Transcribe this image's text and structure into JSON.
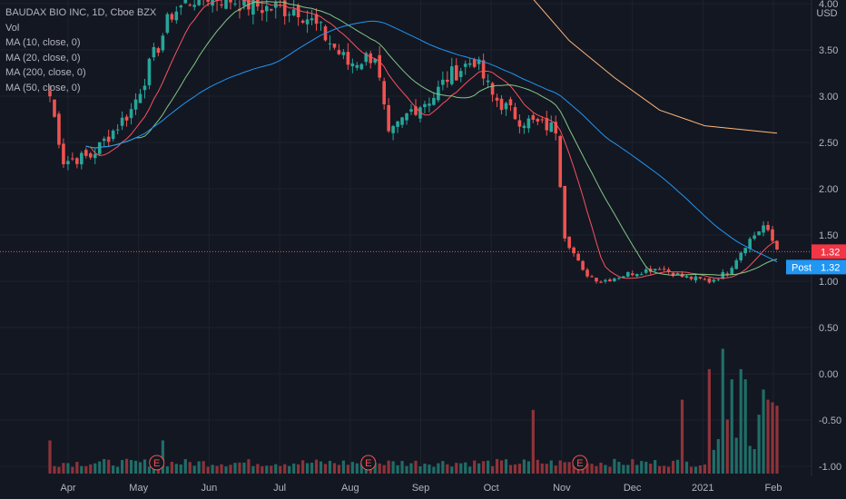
{
  "header": {
    "symbol_line": "BAUDAX BIO INC, 1D, Cboe BZX",
    "indicators": [
      "Vol",
      "MA (10, close, 0)",
      "MA (20, close, 0)",
      "MA (200, close, 0)",
      "MA (50, close, 0)"
    ]
  },
  "price_badges": {
    "last": "1.32",
    "post_label": "Post",
    "post": "1.32",
    "last_color": "#f23645",
    "post_color": "#2196f3"
  },
  "earnings_marker": "E",
  "currency": "USD",
  "chart_data": {
    "type": "candlestick",
    "yticks": [
      "4.00",
      "3.50",
      "3.00",
      "2.50",
      "2.00",
      "1.50",
      "1.00",
      "0.50",
      "0.00",
      "-0.50",
      "-1.00"
    ],
    "ytick_values": [
      4.0,
      3.5,
      3.0,
      2.5,
      2.0,
      1.5,
      1.0,
      0.5,
      0.0,
      -0.5,
      -1.0
    ],
    "xticks": [
      "Apr",
      "May",
      "Jun",
      "Jul",
      "Aug",
      "Sep",
      "Oct",
      "Nov",
      "Dec",
      "2021",
      "Feb"
    ],
    "earnings_months": [
      "May",
      "Aug",
      "Nov"
    ],
    "colors": {
      "up": "#26a69a",
      "down": "#ef5350",
      "up_vol": "#1f6e68",
      "down_vol": "#8f3339",
      "ma10": "#f7525f",
      "ma20": "#81c784",
      "ma50": "#2196f3",
      "ma200": "#ffb877"
    },
    "key_closes": [
      [
        0,
        3.0
      ],
      [
        3,
        2.3
      ],
      [
        9,
        2.35
      ],
      [
        18,
        2.85
      ],
      [
        27,
        3.9
      ],
      [
        33,
        4.1
      ],
      [
        40,
        4.05
      ],
      [
        48,
        3.95
      ],
      [
        55,
        3.95
      ],
      [
        60,
        3.7
      ],
      [
        66,
        3.35
      ],
      [
        72,
        3.45
      ],
      [
        75,
        2.55
      ],
      [
        80,
        2.85
      ],
      [
        85,
        3.0
      ],
      [
        88,
        3.2
      ],
      [
        94,
        3.4
      ],
      [
        98,
        3.0
      ],
      [
        104,
        2.75
      ],
      [
        108,
        2.7
      ],
      [
        112,
        2.65
      ],
      [
        114,
        1.5
      ],
      [
        118,
        1.1
      ],
      [
        122,
        1.0
      ],
      [
        128,
        1.08
      ],
      [
        135,
        1.15
      ],
      [
        140,
        1.05
      ],
      [
        146,
        1.0
      ],
      [
        150,
        1.1
      ],
      [
        154,
        1.4
      ],
      [
        157,
        1.55
      ],
      [
        158,
        1.6
      ],
      [
        161,
        1.35
      ]
    ],
    "ma200_points": [
      [
        107,
        4.05
      ],
      [
        115,
        3.6
      ],
      [
        125,
        3.2
      ],
      [
        135,
        2.85
      ],
      [
        145,
        2.68
      ],
      [
        161,
        2.6
      ]
    ],
    "volume_spikes": [
      [
        0,
        0.15
      ],
      [
        25,
        0.15
      ],
      [
        107,
        0.3
      ],
      [
        140,
        0.35
      ],
      [
        146,
        0.5
      ],
      [
        149,
        0.6
      ],
      [
        151,
        0.45
      ],
      [
        153,
        0.5
      ],
      [
        154,
        0.45
      ],
      [
        158,
        0.4
      ],
      [
        159,
        0.35
      ]
    ],
    "last_price": 1.32,
    "post_price": 1.32
  }
}
